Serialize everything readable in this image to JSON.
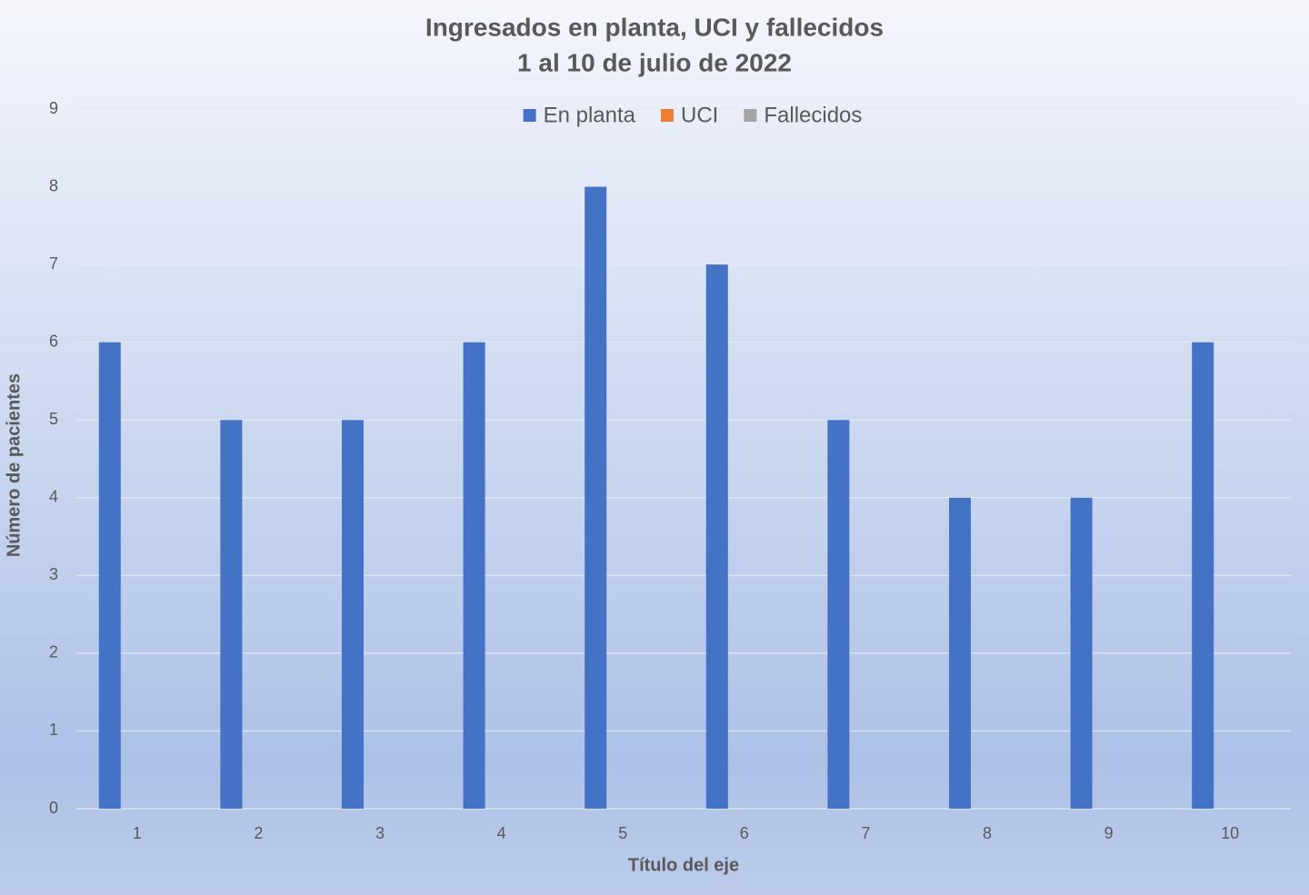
{
  "chart_data": {
    "type": "bar",
    "title": "Ingresados en planta, UCI y fallecidos",
    "subtitle": "1 al 10 de julio de 2022",
    "x_label": "Título del eje",
    "y_label": "Número de pacientes",
    "categories": [
      "1",
      "2",
      "3",
      "4",
      "5",
      "6",
      "7",
      "8",
      "9",
      "10"
    ],
    "series": [
      {
        "name": "En planta",
        "color": "#4472c4",
        "values": [
          6,
          5,
          5,
          6,
          8,
          7,
          5,
          4,
          4,
          6
        ]
      },
      {
        "name": "UCI",
        "color": "#ed7d31",
        "values": [
          0,
          0,
          0,
          0,
          0,
          0,
          0,
          0,
          0,
          0
        ]
      },
      {
        "name": "Fallecidos",
        "color": "#a5a5a5",
        "values": [
          0,
          0,
          0,
          0,
          0,
          0,
          0,
          0,
          0,
          0
        ]
      }
    ],
    "ylim": [
      0,
      9
    ],
    "yticks": [
      0,
      1,
      2,
      3,
      4,
      5,
      6,
      7,
      8,
      9
    ],
    "grid": true,
    "legend": "top"
  }
}
